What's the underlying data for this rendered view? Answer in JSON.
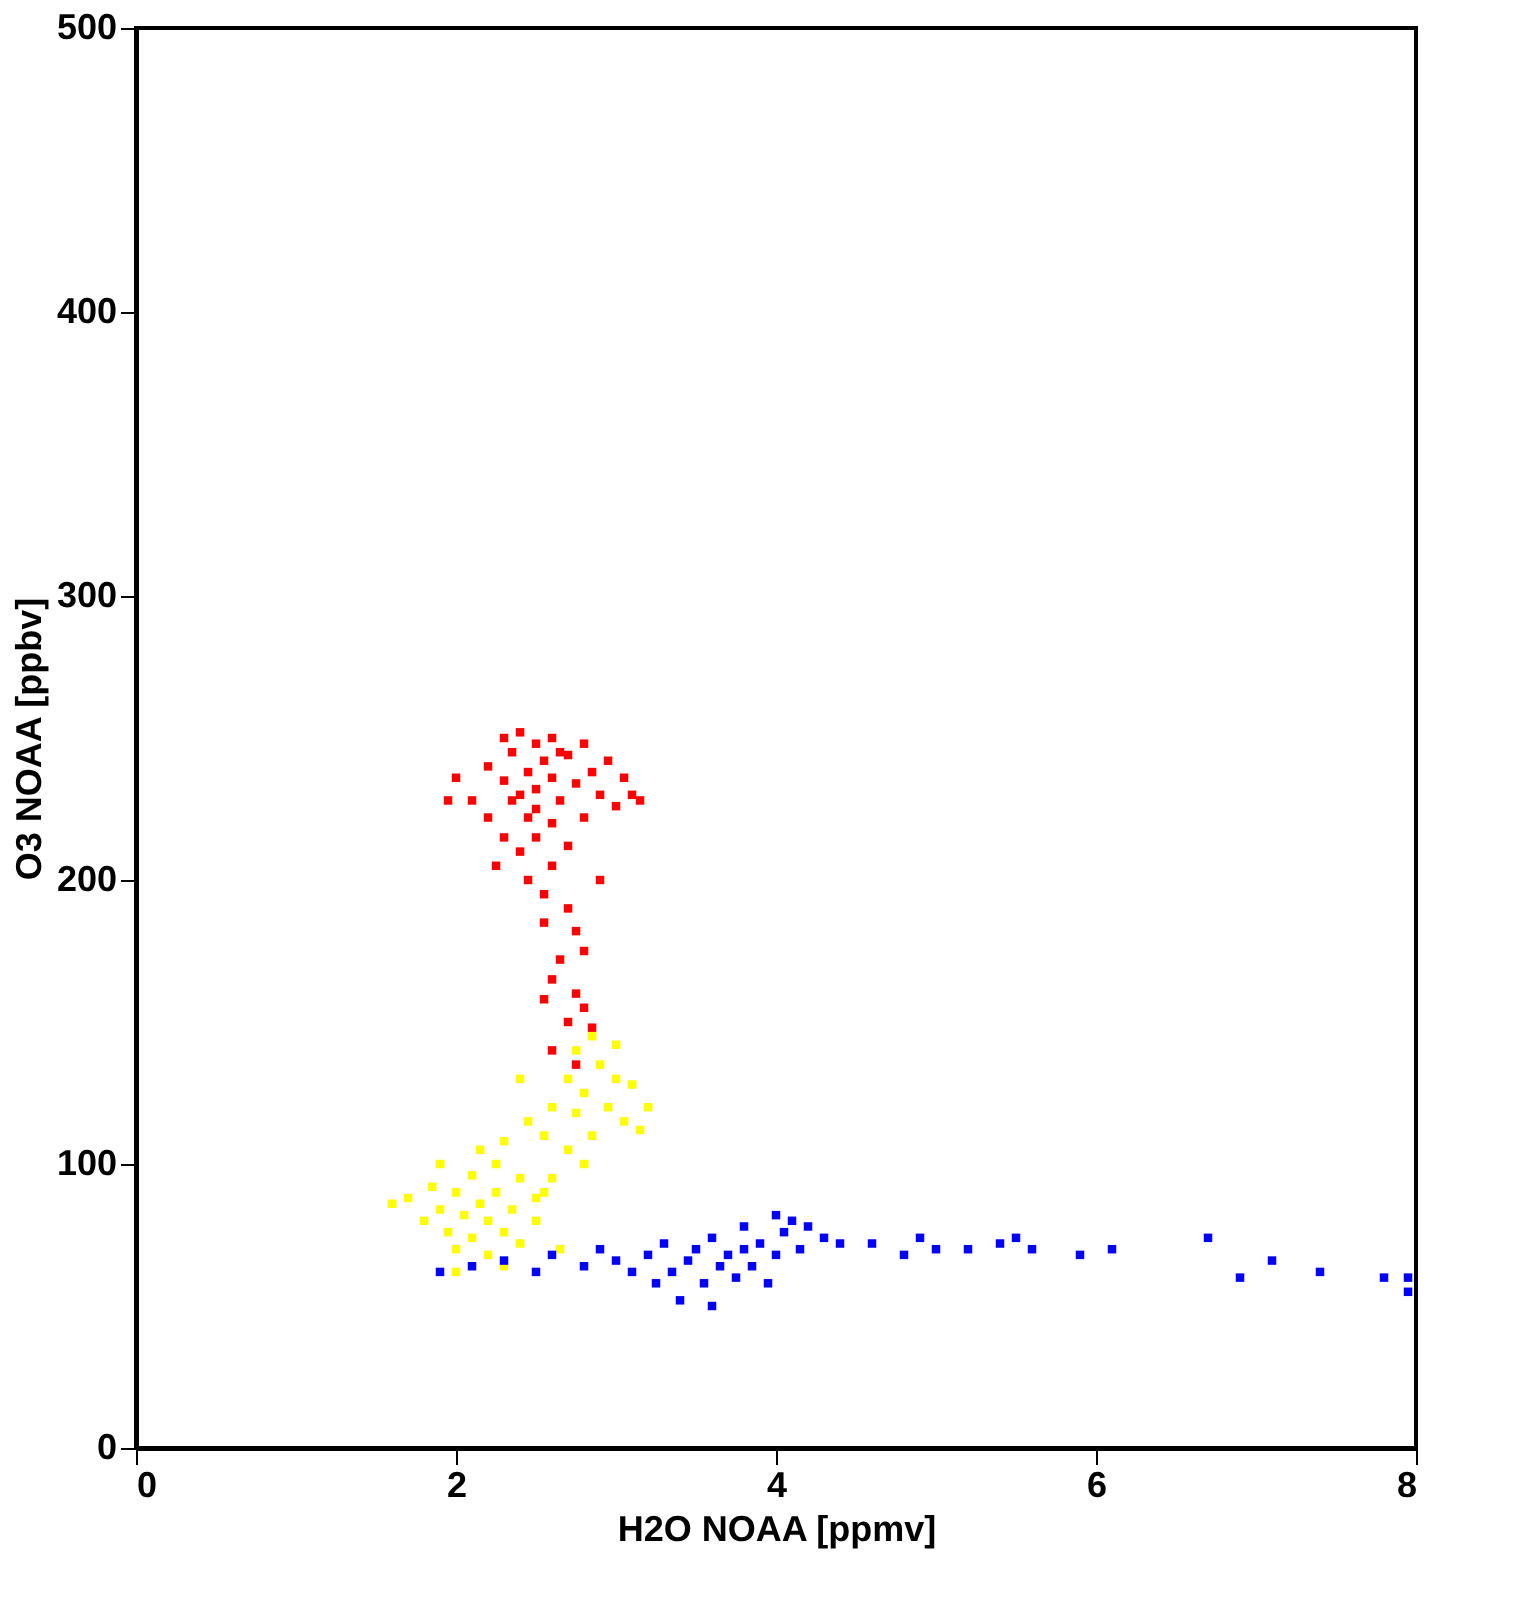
{
  "chart_data": {
    "type": "scatter",
    "xlabel": "H2O NOAA [ppmv]",
    "ylabel": "O3 NOAA [ppbv]",
    "xlim": [
      0,
      8
    ],
    "xticks": [
      0,
      2,
      4,
      6,
      8
    ],
    "ylim": [
      0,
      500
    ],
    "yticks": [
      0,
      100,
      200,
      300,
      400,
      500
    ],
    "grid": false,
    "marker": "square",
    "series": [
      {
        "color": "#ff0000",
        "x": [
          2.1,
          2.2,
          2.2,
          2.3,
          2.3,
          2.3,
          2.35,
          2.4,
          2.4,
          2.4,
          2.45,
          2.5,
          2.5,
          2.5,
          2.55,
          2.6,
          2.6,
          2.6,
          2.65,
          2.7,
          2.7,
          2.75,
          2.8,
          2.8,
          2.85,
          2.9,
          2.95,
          3.0,
          3.05,
          3.1,
          3.15,
          1.95,
          2.0,
          2.25,
          2.45,
          2.55,
          2.6,
          2.55,
          2.7,
          2.75,
          2.65,
          2.8,
          2.6,
          2.75,
          2.55,
          2.7,
          2.85,
          2.6,
          2.75,
          2.8,
          2.9,
          2.5,
          2.35,
          2.65,
          2.45
        ],
        "values": [
          228,
          240,
          222,
          250,
          235,
          215,
          245,
          230,
          252,
          210,
          238,
          225,
          248,
          232,
          242,
          220,
          236,
          250,
          228,
          244,
          212,
          234,
          248,
          222,
          238,
          230,
          242,
          226,
          236,
          230,
          228,
          228,
          236,
          205,
          200,
          195,
          205,
          185,
          190,
          182,
          172,
          175,
          165,
          160,
          158,
          150,
          148,
          140,
          135,
          155,
          200,
          215,
          228,
          245,
          222
        ]
      },
      {
        "color": "#ffff00",
        "x": [
          1.6,
          1.7,
          1.8,
          1.85,
          1.9,
          1.95,
          2.0,
          2.0,
          2.05,
          2.1,
          2.1,
          2.15,
          2.2,
          2.2,
          2.25,
          2.25,
          2.3,
          2.3,
          2.35,
          2.4,
          2.4,
          2.45,
          2.5,
          2.5,
          2.55,
          2.6,
          2.6,
          2.65,
          2.7,
          2.7,
          2.75,
          2.75,
          2.8,
          2.85,
          2.85,
          2.9,
          2.95,
          3.0,
          3.0,
          3.05,
          3.1,
          3.15,
          3.2,
          2.8,
          2.4,
          2.0,
          2.3,
          2.55,
          2.15,
          1.9
        ],
        "values": [
          86,
          88,
          80,
          92,
          84,
          76,
          90,
          70,
          82,
          96,
          74,
          86,
          68,
          80,
          100,
          90,
          76,
          108,
          84,
          72,
          95,
          115,
          88,
          80,
          110,
          120,
          95,
          70,
          130,
          105,
          140,
          118,
          125,
          145,
          110,
          135,
          120,
          130,
          142,
          115,
          128,
          112,
          120,
          100,
          130,
          62,
          64,
          90,
          105,
          100
        ]
      },
      {
        "color": "#0000ff",
        "x": [
          1.9,
          2.1,
          2.3,
          2.5,
          2.6,
          2.8,
          2.9,
          3.0,
          3.1,
          3.2,
          3.25,
          3.3,
          3.35,
          3.4,
          3.45,
          3.5,
          3.55,
          3.6,
          3.6,
          3.65,
          3.7,
          3.75,
          3.8,
          3.8,
          3.85,
          3.9,
          3.95,
          4.0,
          4.0,
          4.05,
          4.1,
          4.15,
          4.2,
          4.3,
          4.4,
          4.6,
          4.8,
          4.9,
          5.0,
          5.2,
          5.4,
          5.5,
          5.6,
          5.9,
          6.1,
          6.7,
          6.9,
          7.1,
          7.4,
          7.8,
          7.95,
          7.95
        ],
        "values": [
          62,
          64,
          66,
          62,
          68,
          64,
          70,
          66,
          62,
          68,
          58,
          72,
          62,
          52,
          66,
          70,
          58,
          74,
          50,
          64,
          68,
          60,
          78,
          70,
          64,
          72,
          58,
          82,
          68,
          76,
          80,
          70,
          78,
          74,
          72,
          72,
          68,
          74,
          70,
          70,
          72,
          74,
          70,
          68,
          70,
          74,
          60,
          66,
          62,
          60,
          60,
          55
        ]
      }
    ]
  }
}
